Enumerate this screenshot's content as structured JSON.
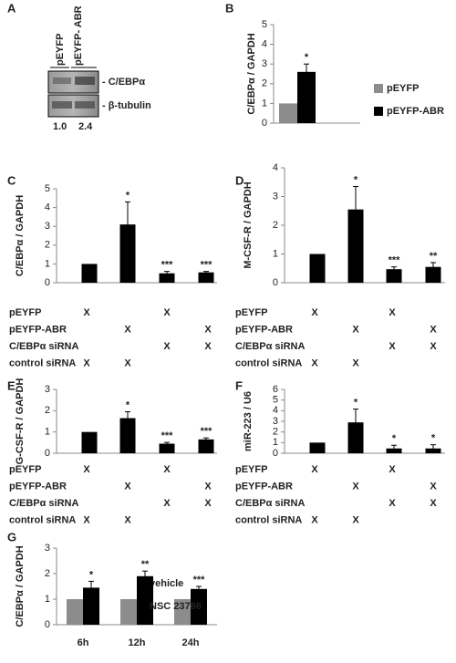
{
  "blot": {
    "panel_label": "A",
    "lanes": [
      "pEYFP",
      "pEYFP- ABR"
    ],
    "bands": [
      "- C/EBPα",
      "- β-tubulin"
    ],
    "ratios": [
      "1.0",
      "2.4"
    ]
  },
  "chart_data": [
    {
      "type": "bar",
      "panel_label": "B",
      "y_label": "C/EBPα / GAPDH",
      "categories": [
        null
      ],
      "series": [
        {
          "name": "pEYFP",
          "color": "#8c8c8c",
          "values": [
            1
          ]
        },
        {
          "name": "pEYFP-ABR",
          "color": "#000000",
          "values": [
            2.6
          ],
          "errors": [
            0.4
          ],
          "annotations": [
            "*"
          ]
        }
      ],
      "ylim": [
        0,
        5
      ],
      "yticks": [
        0,
        1,
        2,
        3,
        4,
        5
      ],
      "legend": "right"
    },
    {
      "type": "bar",
      "panel_label": "C",
      "y_label": "C/EBPα / GAPDH",
      "categories": [
        null,
        null,
        null,
        null
      ],
      "series": [
        {
          "color": "#000000",
          "values": [
            1,
            3.1,
            0.5,
            0.55
          ],
          "errors": [
            null,
            1.2,
            0.1,
            0.05
          ],
          "annotations": [
            null,
            "*",
            "***",
            "***"
          ]
        }
      ],
      "ylim": [
        0,
        5
      ],
      "yticks": [
        0,
        1,
        2,
        3,
        4,
        5
      ],
      "conditions": [
        {
          "name": "pEYFP",
          "marks": [
            "X",
            null,
            "X",
            null
          ]
        },
        {
          "name": "pEYFP-ABR",
          "marks": [
            null,
            "X",
            null,
            "X"
          ]
        },
        {
          "name": "C/EBPα siRNA",
          "marks": [
            null,
            null,
            "X",
            "X"
          ]
        },
        {
          "name": "control siRNA",
          "marks": [
            "X",
            "X",
            null,
            null
          ]
        }
      ]
    },
    {
      "type": "bar",
      "panel_label": "D",
      "y_label": "M-CSF-R / GAPDH",
      "categories": [
        null,
        null,
        null,
        null
      ],
      "series": [
        {
          "color": "#000000",
          "values": [
            1,
            2.55,
            0.47,
            0.55
          ],
          "errors": [
            null,
            0.8,
            0.08,
            0.15
          ],
          "annotations": [
            null,
            "*",
            "***",
            "**"
          ]
        }
      ],
      "ylim": [
        0,
        4
      ],
      "yticks": [
        0,
        1,
        2,
        3,
        4
      ],
      "conditions": [
        {
          "name": "pEYFP",
          "marks": [
            "X",
            null,
            "X",
            null
          ]
        },
        {
          "name": "pEYFP-ABR",
          "marks": [
            null,
            "X",
            null,
            "X"
          ]
        },
        {
          "name": "C/EBPα siRNA",
          "marks": [
            null,
            null,
            "X",
            "X"
          ]
        },
        {
          "name": "control siRNA",
          "marks": [
            "X",
            "X",
            null,
            null
          ]
        }
      ]
    },
    {
      "type": "bar",
      "panel_label": "E",
      "y_label": "G-CSF-R / GAPDH",
      "categories": [
        null,
        null,
        null,
        null
      ],
      "series": [
        {
          "color": "#000000",
          "values": [
            1,
            1.65,
            0.45,
            0.65
          ],
          "errors": [
            null,
            0.3,
            0.06,
            0.07
          ],
          "annotations": [
            null,
            "*",
            "***",
            "***"
          ]
        }
      ],
      "ylim": [
        0,
        3
      ],
      "yticks": [
        0,
        1,
        2,
        3
      ],
      "conditions": [
        {
          "name": "pEYFP",
          "marks": [
            "X",
            null,
            "X",
            null
          ]
        },
        {
          "name": "pEYFP-ABR",
          "marks": [
            null,
            "X",
            null,
            "X"
          ]
        },
        {
          "name": "C/EBPα siRNA",
          "marks": [
            null,
            null,
            "X",
            "X"
          ]
        },
        {
          "name": "control siRNA",
          "marks": [
            "X",
            "X",
            null,
            null
          ]
        }
      ]
    },
    {
      "type": "bar",
      "panel_label": "F",
      "y_label": "miR-223 / U6",
      "categories": [
        null,
        null,
        null,
        null
      ],
      "series": [
        {
          "color": "#000000",
          "values": [
            1,
            2.9,
            0.45,
            0.45
          ],
          "errors": [
            null,
            1.25,
            0.3,
            0.35
          ],
          "annotations": [
            null,
            "*",
            "*",
            "*"
          ]
        }
      ],
      "ylim": [
        0,
        6
      ],
      "yticks": [
        0,
        1,
        2,
        3,
        4,
        5,
        6
      ],
      "conditions": [
        {
          "name": "pEYFP",
          "marks": [
            "X",
            null,
            "X",
            null
          ]
        },
        {
          "name": "pEYFP-ABR",
          "marks": [
            null,
            "X",
            null,
            "X"
          ]
        },
        {
          "name": "C/EBPα siRNA",
          "marks": [
            null,
            null,
            "X",
            "X"
          ]
        },
        {
          "name": "control siRNA",
          "marks": [
            "X",
            "X",
            null,
            null
          ]
        }
      ]
    },
    {
      "type": "bar",
      "panel_label": "G",
      "y_label": "C/EBPα / GAPDH",
      "categories": [
        "6h",
        "12h",
        "24h"
      ],
      "series": [
        {
          "name": "vehicle",
          "color": "#8c8c8c",
          "values": [
            1,
            1,
            1
          ]
        },
        {
          "name": "NSC 23766",
          "color": "#000000",
          "values": [
            1.45,
            1.9,
            1.4
          ],
          "errors": [
            0.25,
            0.2,
            0.1
          ],
          "annotations": [
            "*",
            "**",
            "***"
          ]
        }
      ],
      "ylim": [
        0,
        3
      ],
      "yticks": [
        0,
        1,
        2,
        3
      ],
      "legend": "lower right"
    }
  ]
}
